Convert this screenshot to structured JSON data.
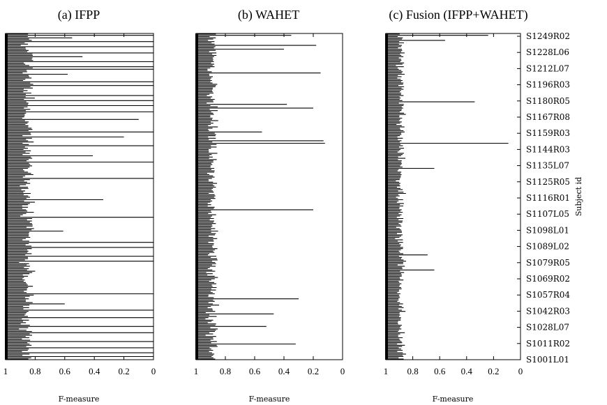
{
  "chart_data": {
    "type": "bar",
    "orientation": "horizontal",
    "xlabel": "F-measure",
    "ylabel": "Subject id",
    "xlim": [
      1,
      0
    ],
    "x_ticks": [
      "1",
      "0.8",
      "0.6",
      "0.4",
      "0.2",
      "0"
    ],
    "y_ticks": [
      "S1249R02",
      "S1228L06",
      "S1212L07",
      "S1196R03",
      "S1180R05",
      "S1167R08",
      "S1159R03",
      "S1144R03",
      "S1135L07",
      "S1125R05",
      "S1116R01",
      "S1107L05",
      "S1098L01",
      "S1089L02",
      "S1079R05",
      "S1069R02",
      "S1057R04",
      "S1042R03",
      "S1028L07",
      "S1011R02",
      "S1001L01"
    ],
    "panels": [
      {
        "title": "(a) IFPP",
        "baseline": 0.85,
        "spread": 0.06,
        "outliers": [
          {
            "pos": 0.002,
            "value": 0.0
          },
          {
            "pos": 0.012,
            "value": 0.55
          },
          {
            "pos": 0.022,
            "value": 0.0
          },
          {
            "pos": 0.04,
            "value": 0.0
          },
          {
            "pos": 0.058,
            "value": 0.0
          },
          {
            "pos": 0.07,
            "value": 0.48
          },
          {
            "pos": 0.085,
            "value": 0.0
          },
          {
            "pos": 0.1,
            "value": 0.0
          },
          {
            "pos": 0.11,
            "value": 0.0
          },
          {
            "pos": 0.125,
            "value": 0.58
          },
          {
            "pos": 0.145,
            "value": 0.0
          },
          {
            "pos": 0.16,
            "value": 0.0
          },
          {
            "pos": 0.19,
            "value": 0.0
          },
          {
            "pos": 0.205,
            "value": 0.0
          },
          {
            "pos": 0.222,
            "value": 0.0
          },
          {
            "pos": 0.24,
            "value": 0.0
          },
          {
            "pos": 0.262,
            "value": 0.1
          },
          {
            "pos": 0.3,
            "value": 0.0
          },
          {
            "pos": 0.315,
            "value": 0.2
          },
          {
            "pos": 0.345,
            "value": 0.0
          },
          {
            "pos": 0.375,
            "value": 0.41
          },
          {
            "pos": 0.395,
            "value": 0.0
          },
          {
            "pos": 0.445,
            "value": 0.0
          },
          {
            "pos": 0.51,
            "value": 0.34
          },
          {
            "pos": 0.565,
            "value": 0.0
          },
          {
            "pos": 0.605,
            "value": 0.61
          },
          {
            "pos": 0.64,
            "value": 0.0
          },
          {
            "pos": 0.655,
            "value": 0.0
          },
          {
            "pos": 0.685,
            "value": 0.0
          },
          {
            "pos": 0.7,
            "value": 0.0
          },
          {
            "pos": 0.8,
            "value": 0.0
          },
          {
            "pos": 0.83,
            "value": 0.6
          },
          {
            "pos": 0.848,
            "value": 0.0
          },
          {
            "pos": 0.872,
            "value": 0.0
          },
          {
            "pos": 0.9,
            "value": 0.0
          },
          {
            "pos": 0.92,
            "value": 0.0
          },
          {
            "pos": 0.945,
            "value": 0.0
          },
          {
            "pos": 0.965,
            "value": 0.0
          },
          {
            "pos": 0.98,
            "value": 0.0
          },
          {
            "pos": 0.992,
            "value": 0.0
          }
        ]
      },
      {
        "title": "(b) WAHET",
        "baseline": 0.89,
        "spread": 0.05,
        "outliers": [
          {
            "pos": 0.004,
            "value": 0.35
          },
          {
            "pos": 0.033,
            "value": 0.18
          },
          {
            "pos": 0.045,
            "value": 0.4
          },
          {
            "pos": 0.12,
            "value": 0.15
          },
          {
            "pos": 0.215,
            "value": 0.38
          },
          {
            "pos": 0.226,
            "value": 0.2
          },
          {
            "pos": 0.3,
            "value": 0.55
          },
          {
            "pos": 0.33,
            "value": 0.13
          },
          {
            "pos": 0.335,
            "value": 0.12
          },
          {
            "pos": 0.54,
            "value": 0.2
          },
          {
            "pos": 0.815,
            "value": 0.3
          },
          {
            "pos": 0.86,
            "value": 0.47
          },
          {
            "pos": 0.9,
            "value": 0.52
          },
          {
            "pos": 0.955,
            "value": 0.32
          }
        ]
      },
      {
        "title": "(c) Fusion (IFPP+WAHET)",
        "baseline": 0.89,
        "spread": 0.04,
        "outliers": [
          {
            "pos": 0.004,
            "value": 0.24
          },
          {
            "pos": 0.018,
            "value": 0.56
          },
          {
            "pos": 0.208,
            "value": 0.34
          },
          {
            "pos": 0.334,
            "value": 0.09
          },
          {
            "pos": 0.415,
            "value": 0.64
          },
          {
            "pos": 0.68,
            "value": 0.69
          },
          {
            "pos": 0.725,
            "value": 0.64
          }
        ]
      }
    ]
  }
}
